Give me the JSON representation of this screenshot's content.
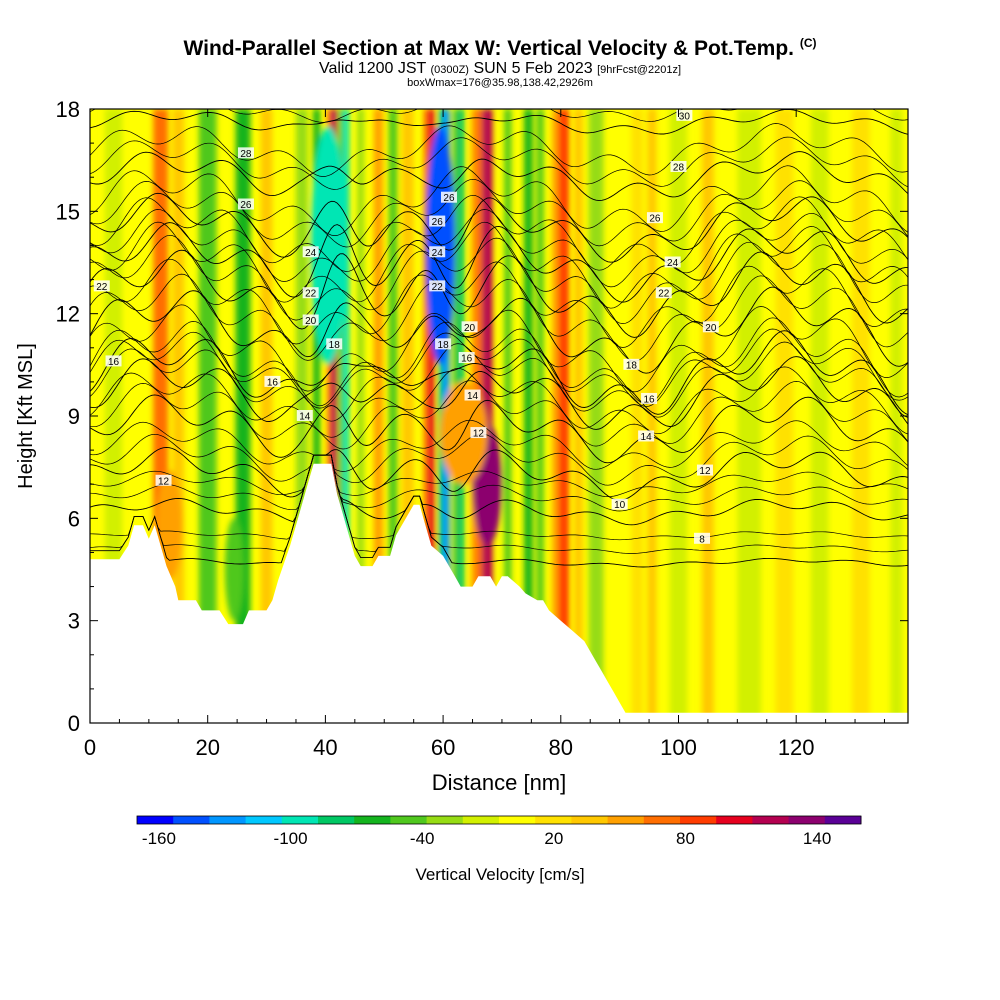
{
  "title": {
    "main": "Wind-Parallel Section at Max W: Vertical Velocity & Pot.Temp.",
    "copyright": "(C)",
    "valid_a": "Valid 1200 JST",
    "valid_z": "(0300Z)",
    "valid_b": "SUN 5 Feb 2023",
    "fcst": "[9hrFcst@2201z]",
    "box": "boxWmax=176@35.98,138.42,2926m"
  },
  "chart_data": {
    "type": "heatmap",
    "xlabel": "Distance [nm]",
    "ylabel": "Height [Kft MSL]",
    "xlim": [
      0,
      139
    ],
    "ylim": [
      0,
      18
    ],
    "xticks": [
      0,
      20,
      40,
      60,
      80,
      100,
      120
    ],
    "yticks": [
      0,
      3,
      6,
      9,
      12,
      15,
      18
    ],
    "colorbar": {
      "label": "Vertical Velocity [cm/s]",
      "tick_labels": [
        "-160",
        "-100",
        "-40",
        "20",
        "80",
        "140"
      ],
      "tick_values": [
        -160,
        -100,
        -40,
        20,
        80,
        140
      ],
      "range": [
        -170,
        160
      ],
      "colors": [
        "#0000ff",
        "#0050ff",
        "#0096ff",
        "#00c8ff",
        "#00e6b4",
        "#00c864",
        "#14b41e",
        "#50c81e",
        "#96dc14",
        "#d2f000",
        "#ffff00",
        "#ffe100",
        "#ffc800",
        "#ffa000",
        "#ff6e00",
        "#ff3c00",
        "#e6001e",
        "#b40050",
        "#8c006e",
        "#5a0096"
      ]
    },
    "velocity_bands": [
      {
        "x": 4,
        "w": 3,
        "v": -15
      },
      {
        "x": 12,
        "w": 2.5,
        "v": 70
      },
      {
        "x": 15,
        "w": 2,
        "v": 30
      },
      {
        "x": 20,
        "w": 3,
        "v": -45
      },
      {
        "x": 26,
        "w": 2.5,
        "v": -55
      },
      {
        "x": 30,
        "w": 2,
        "v": 30
      },
      {
        "x": 36,
        "w": 2,
        "v": -35
      },
      {
        "x": 38.5,
        "w": 1.2,
        "v": -70
      },
      {
        "x": 41.5,
        "w": 1.1,
        "v": 120
      },
      {
        "x": 43.5,
        "w": 1.1,
        "v": -90
      },
      {
        "x": 46,
        "w": 1.1,
        "v": -30
      },
      {
        "x": 49,
        "w": 1.6,
        "v": 60
      },
      {
        "x": 51.5,
        "w": 1.5,
        "v": -50
      },
      {
        "x": 54,
        "w": 2,
        "v": 40
      },
      {
        "x": 58,
        "w": 1.2,
        "v": 110
      },
      {
        "x": 60.5,
        "w": 1.2,
        "v": -130
      },
      {
        "x": 63,
        "w": 1.2,
        "v": -80
      },
      {
        "x": 65.5,
        "w": 1.5,
        "v": 60
      },
      {
        "x": 67.5,
        "w": 1.8,
        "v": 120
      },
      {
        "x": 71,
        "w": 1.2,
        "v": -40
      },
      {
        "x": 74.5,
        "w": 1.5,
        "v": -60
      },
      {
        "x": 76.5,
        "w": 1.2,
        "v": -50
      },
      {
        "x": 80.5,
        "w": 1.8,
        "v": 90
      },
      {
        "x": 83,
        "w": 1.5,
        "v": 40
      },
      {
        "x": 86,
        "w": 2.5,
        "v": -25
      },
      {
        "x": 93,
        "w": 2,
        "v": 15
      },
      {
        "x": 95.5,
        "w": 1.5,
        "v": 40
      },
      {
        "x": 100,
        "w": 3,
        "v": -20
      },
      {
        "x": 105,
        "w": 2,
        "v": 30
      },
      {
        "x": 112,
        "w": 4,
        "v": -15
      },
      {
        "x": 118,
        "w": 3,
        "v": 20
      },
      {
        "x": 124,
        "w": 3,
        "v": -15
      },
      {
        "x": 131,
        "w": 3,
        "v": 15
      },
      {
        "x": 137,
        "w": 2,
        "v": -10
      }
    ],
    "velocity_blobs": [
      {
        "x": 67.5,
        "y": 7.0,
        "rx": 2.5,
        "ry": 1.8,
        "v": 140
      },
      {
        "x": 13.5,
        "y": 5.8,
        "rx": 2.2,
        "ry": 1.6,
        "v": 60
      },
      {
        "x": 24.5,
        "y": 4.5,
        "rx": 1.6,
        "ry": 1.5,
        "v": -40
      },
      {
        "x": 63.5,
        "y": 8.5,
        "rx": 4,
        "ry": 1.5,
        "v": 60
      },
      {
        "x": 40.5,
        "y": 14,
        "rx": 3,
        "ry": 3.5,
        "v": -100
      },
      {
        "x": 59.5,
        "y": 14,
        "rx": 2.5,
        "ry": 3.5,
        "v": -150
      }
    ],
    "terrain_profile": [
      [
        0,
        4.8
      ],
      [
        5,
        4.8
      ],
      [
        6.5,
        5.2
      ],
      [
        7.5,
        5.8
      ],
      [
        9,
        5.8
      ],
      [
        10,
        5.4
      ],
      [
        11,
        5.8
      ],
      [
        12,
        5.2
      ],
      [
        13,
        4.6
      ],
      [
        14.5,
        4.0
      ],
      [
        15,
        3.6
      ],
      [
        18,
        3.6
      ],
      [
        19,
        3.3
      ],
      [
        22,
        3.3
      ],
      [
        23.5,
        2.9
      ],
      [
        26,
        2.9
      ],
      [
        27,
        3.3
      ],
      [
        30,
        3.3
      ],
      [
        31,
        3.6
      ],
      [
        32,
        4.2
      ],
      [
        34,
        5.2
      ],
      [
        35,
        5.8
      ],
      [
        37,
        7.0
      ],
      [
        38,
        7.6
      ],
      [
        41,
        7.6
      ],
      [
        42,
        6.7
      ],
      [
        43,
        6.1
      ],
      [
        44,
        5.5
      ],
      [
        45,
        4.9
      ],
      [
        46,
        4.6
      ],
      [
        48,
        4.6
      ],
      [
        49,
        4.9
      ],
      [
        51,
        4.9
      ],
      [
        52,
        5.5
      ],
      [
        54,
        6.1
      ],
      [
        55,
        6.4
      ],
      [
        56,
        6.4
      ],
      [
        57,
        5.8
      ],
      [
        58,
        5.2
      ],
      [
        60,
        4.9
      ],
      [
        61,
        4.6
      ],
      [
        62,
        4.3
      ],
      [
        63,
        4.0
      ],
      [
        65,
        4.0
      ],
      [
        66,
        4.3
      ],
      [
        68,
        4.3
      ],
      [
        69,
        4.0
      ],
      [
        70,
        4.3
      ],
      [
        71,
        4.3
      ],
      [
        73,
        4.0
      ],
      [
        74,
        3.8
      ],
      [
        76,
        3.6
      ],
      [
        77,
        3.6
      ],
      [
        78,
        3.3
      ],
      [
        80,
        3.0
      ],
      [
        82,
        2.7
      ],
      [
        84,
        2.4
      ],
      [
        85,
        2.1
      ],
      [
        86,
        1.8
      ],
      [
        87,
        1.5
      ],
      [
        88,
        1.2
      ],
      [
        89,
        0.9
      ],
      [
        90,
        0.6
      ],
      [
        91,
        0.3
      ],
      [
        139,
        0.3
      ]
    ],
    "theta_contours": [
      {
        "label": "8",
        "h": 4.7,
        "amp": 0.1
      },
      {
        "label": "10",
        "h": 6.2,
        "amp": 0.3
      },
      {
        "label": "12",
        "h": 7.3,
        "amp": 0.6
      },
      {
        "label": "14",
        "h": 8.6,
        "amp": 0.8
      },
      {
        "label": "16",
        "h": 9.6,
        "amp": 0.9
      },
      {
        "label": "18",
        "h": 10.2,
        "amp": 1.0
      },
      {
        "label": "20",
        "h": 11.5,
        "amp": 1.0
      },
      {
        "label": "22",
        "h": 12.6,
        "amp": 1.0
      },
      {
        "label": "24",
        "h": 13.5,
        "amp": 0.9
      },
      {
        "label": "26",
        "h": 14.5,
        "amp": 0.8
      },
      {
        "label": "28",
        "h": 16.0,
        "amp": 0.6
      },
      {
        "label": "30",
        "h": 17.6,
        "amp": 0.3
      }
    ],
    "contour_labels": [
      {
        "text": "8",
        "x": 104,
        "y": 5.4
      },
      {
        "text": "10",
        "x": 90,
        "y": 6.4
      },
      {
        "text": "12",
        "x": 104.5,
        "y": 7.4
      },
      {
        "text": "12",
        "x": 12.5,
        "y": 7.1
      },
      {
        "text": "12",
        "x": 66,
        "y": 8.5
      },
      {
        "text": "14",
        "x": 94.5,
        "y": 8.4
      },
      {
        "text": "14",
        "x": 36.5,
        "y": 9.0
      },
      {
        "text": "14",
        "x": 65,
        "y": 9.6
      },
      {
        "text": "16",
        "x": 95,
        "y": 9.5
      },
      {
        "text": "16",
        "x": 31,
        "y": 10.0
      },
      {
        "text": "16",
        "x": 64,
        "y": 10.7
      },
      {
        "text": "16",
        "x": 4,
        "y": 10.6
      },
      {
        "text": "18",
        "x": 92,
        "y": 10.5
      },
      {
        "text": "18",
        "x": 41.5,
        "y": 11.1
      },
      {
        "text": "18",
        "x": 60,
        "y": 11.1
      },
      {
        "text": "20",
        "x": 105.5,
        "y": 11.6
      },
      {
        "text": "20",
        "x": 37.5,
        "y": 11.8
      },
      {
        "text": "20",
        "x": 64.5,
        "y": 11.6
      },
      {
        "text": "22",
        "x": 97.5,
        "y": 12.6
      },
      {
        "text": "22",
        "x": 37.5,
        "y": 12.6
      },
      {
        "text": "22",
        "x": 59,
        "y": 12.8
      },
      {
        "text": "22",
        "x": 2,
        "y": 12.8
      },
      {
        "text": "24",
        "x": 99,
        "y": 13.5
      },
      {
        "text": "24",
        "x": 37.5,
        "y": 13.8
      },
      {
        "text": "24",
        "x": 59,
        "y": 13.8
      },
      {
        "text": "26",
        "x": 96,
        "y": 14.8
      },
      {
        "text": "26",
        "x": 59,
        "y": 14.7
      },
      {
        "text": "26",
        "x": 26.5,
        "y": 15.2
      },
      {
        "text": "26",
        "x": 61,
        "y": 15.4
      },
      {
        "text": "28",
        "x": 100,
        "y": 16.3
      },
      {
        "text": "28",
        "x": 26.5,
        "y": 16.7
      },
      {
        "text": "30",
        "x": 101,
        "y": 17.8
      }
    ]
  }
}
